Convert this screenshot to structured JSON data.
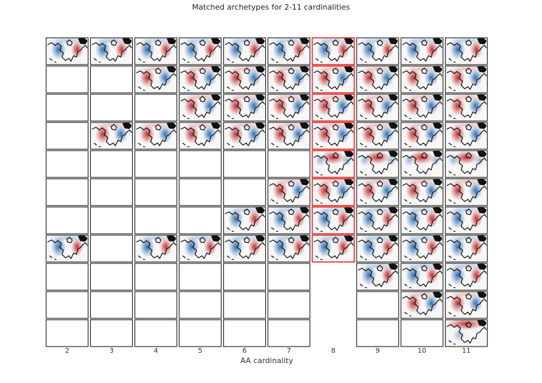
{
  "chart_data": {
    "type": "heatmap",
    "title": "Matched archetypes for 2-11 cardinalities",
    "xlabel": "AA cardinality",
    "ylabel": "",
    "x_ticks": [
      "2",
      "3",
      "4",
      "5",
      "6",
      "7",
      "8",
      "9",
      "10",
      "11"
    ],
    "cardinalities": [
      2,
      3,
      4,
      5,
      6,
      7,
      8,
      9,
      10,
      11
    ],
    "n_rows": 11,
    "highlighted_cardinality": 8,
    "highlight_color": "#e03030",
    "colormap": "RdBu_r (red = positive, blue = negative)",
    "filled_rows": {
      "2": [
        0,
        7
      ],
      "3": [
        0,
        3
      ],
      "4": [
        0,
        1,
        3,
        7
      ],
      "5": [
        0,
        1,
        2,
        3,
        7
      ],
      "6": [
        0,
        1,
        2,
        3,
        6,
        7
      ],
      "7": [
        0,
        1,
        2,
        3,
        5,
        6,
        7
      ],
      "8": [
        0,
        1,
        2,
        3,
        4,
        5,
        6,
        7
      ],
      "9": [
        0,
        1,
        2,
        3,
        4,
        5,
        6,
        7,
        8
      ],
      "10": [
        0,
        1,
        2,
        3,
        4,
        5,
        6,
        7,
        8,
        9
      ],
      "11": [
        0,
        1,
        2,
        3,
        4,
        5,
        6,
        7,
        8,
        9,
        10
      ]
    },
    "empty_cell_style": {
      "8": "no-frame"
    },
    "row_patterns": [
      "blue-west red-east dipole",
      "red-west blue-east dipole",
      "red-west blue-east dipole",
      "red-west blue-east dipole (weaker)",
      "red-central anomaly",
      "red-west blue-east dipole",
      "blue-west red-east dipole",
      "blue-west red-east dipole",
      "blue-west red-east dipole",
      "red-west blue-east dipole",
      "red-north anomaly"
    ]
  }
}
